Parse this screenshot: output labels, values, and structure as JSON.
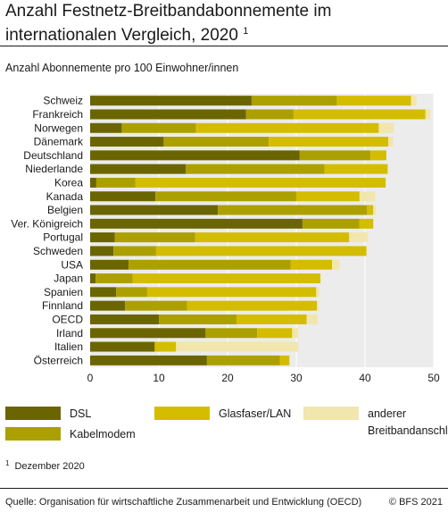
{
  "header": {
    "title_line1": "Anzahl Festnetz-Breitbandabonnemente im",
    "title_line2": "internationalen Vergleich, 2020",
    "title_footnote": "1",
    "subtitle": "Anzahl Abonnemente pro 100 Einwohner/innen"
  },
  "footer": {
    "note_marker": "1",
    "note": "Dezember 2020",
    "source": "Quelle: Organisation für wirtschaftliche Zusammenarbeit und Entwicklung (OECD)",
    "copyright": "© BFS 2021"
  },
  "colors": {
    "DSL": "#6b6500",
    "Kabelmodem": "#aca000",
    "Glasfaser/LAN": "#d4bd00",
    "anderer Breitbandanschluss": "#f1e6ad",
    "plot_background": "#ececec"
  },
  "chart_data": {
    "type": "bar",
    "orientation": "horizontal",
    "stacked": true,
    "categories": [
      "Schweiz",
      "Frankreich",
      "Norwegen",
      "Dänemark",
      "Deutschland",
      "Niederlande",
      "Korea",
      "Kanada",
      "Belgien",
      "Ver. Königreich",
      "Portugal",
      "Schweden",
      "USA",
      "Japan",
      "Spanien",
      "Finnland",
      "OECD",
      "Irland",
      "Italien",
      "Österreich"
    ],
    "series": [
      {
        "name": "DSL",
        "values": [
          23.5,
          22.7,
          4.6,
          10.7,
          30.5,
          13.9,
          0.9,
          9.5,
          18.6,
          30.9,
          3.6,
          3.4,
          5.6,
          0.8,
          3.8,
          5.1,
          10.0,
          16.8,
          9.4,
          17.0
        ]
      },
      {
        "name": "Kabelmodem",
        "values": [
          12.4,
          6.9,
          10.8,
          15.3,
          10.3,
          20.2,
          5.7,
          20.5,
          21.7,
          8.3,
          11.7,
          6.2,
          23.6,
          5.4,
          4.5,
          9.0,
          11.3,
          7.5,
          0.0,
          10.6
        ]
      },
      {
        "name": "Glasfaser/LAN",
        "values": [
          10.8,
          19.2,
          26.6,
          17.4,
          2.3,
          9.2,
          36.4,
          9.2,
          0.9,
          2.0,
          22.4,
          30.6,
          6.0,
          27.3,
          24.6,
          18.9,
          10.2,
          5.1,
          3.1,
          1.4
        ]
      },
      {
        "name": "anderer Breitbandanschluss",
        "values": [
          0.8,
          0.7,
          2.2,
          0.7,
          0.0,
          0.0,
          0.0,
          2.3,
          0.4,
          0.0,
          2.7,
          0.1,
          1.1,
          0.1,
          0.4,
          0.3,
          1.6,
          0.9,
          17.8,
          0.0
        ]
      }
    ],
    "xlim": [
      0,
      50
    ],
    "xticks": [
      0,
      10,
      20,
      30,
      40,
      50
    ],
    "grid": true,
    "legend_position": "bottom"
  }
}
